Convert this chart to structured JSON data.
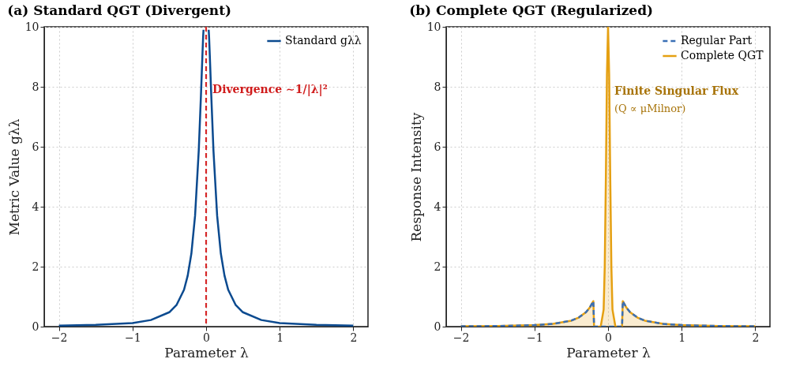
{
  "chart_data": [
    {
      "type": "line",
      "title": "(a) Standard QGT (Divergent)",
      "xlabel": "Parameter λ",
      "ylabel": "Metric Value gλλ",
      "x": [
        -2,
        -1.5,
        -1,
        -0.75,
        -0.5,
        -0.4,
        -0.3,
        -0.25,
        -0.2,
        -0.15,
        -0.1,
        -0.07,
        -0.05,
        -0.04,
        -0.035,
        0,
        0.035,
        0.04,
        0.05,
        0.07,
        0.1,
        0.15,
        0.2,
        0.25,
        0.3,
        0.4,
        0.5,
        0.75,
        1,
        1.5,
        2
      ],
      "series": [
        {
          "name": "Standard gλλ",
          "color": "#0b4a8f",
          "values": [
            0.03,
            0.06,
            0.12,
            0.22,
            0.48,
            0.73,
            1.23,
            1.7,
            2.44,
            3.7,
            5.87,
            7.72,
            9.06,
            9.69,
            9.9,
            null,
            9.9,
            9.69,
            9.06,
            7.72,
            5.87,
            3.7,
            2.44,
            1.7,
            1.23,
            0.73,
            0.48,
            0.22,
            0.12,
            0.06,
            0.03
          ]
        }
      ],
      "xlim": [
        -2.2,
        2.2
      ],
      "xticks": [
        -2,
        -1,
        0,
        1,
        2
      ],
      "ylim": [
        0,
        10
      ],
      "yticks": [
        0,
        2,
        4,
        6,
        8,
        10
      ],
      "ref_lines": [
        {
          "axis": "x",
          "value": 0,
          "color": "#d62728",
          "line_style": "dashed"
        }
      ],
      "annotations": [
        "Divergence ∼1/|λ|²"
      ],
      "grid": true,
      "legend": "top right",
      "line_style": "solid"
    },
    {
      "type": "line",
      "title": "(b) Complete QGT (Regularized)",
      "xlabel": "Parameter λ",
      "ylabel": "Response Intensity",
      "series": [
        {
          "name": "Regular Part",
          "color": "#3a6fb5",
          "line_style": "dashed",
          "x": [
            -2,
            -1.5,
            -1,
            -0.75,
            -0.5,
            -0.4,
            -0.3,
            -0.25,
            -0.2,
            -0.19,
            0,
            0.19,
            0.2,
            0.25,
            0.3,
            0.4,
            0.5,
            0.75,
            1,
            1.5,
            2
          ],
          "values": [
            0.01,
            0.02,
            0.05,
            0.09,
            0.2,
            0.3,
            0.48,
            0.63,
            0.85,
            0,
            0,
            0,
            0.85,
            0.63,
            0.48,
            0.3,
            0.2,
            0.09,
            0.05,
            0.02,
            0.01
          ]
        },
        {
          "name": "Complete QGT",
          "color": "#e5a012",
          "type": "area",
          "line_style": "solid",
          "x": [
            -2,
            -1.5,
            -1,
            -0.75,
            -0.5,
            -0.4,
            -0.3,
            -0.25,
            -0.2,
            -0.19,
            -0.1,
            -0.06,
            -0.045,
            -0.03,
            -0.015,
            0,
            0.015,
            0.03,
            0.045,
            0.06,
            0.1,
            0.19,
            0.2,
            0.25,
            0.3,
            0.4,
            0.5,
            0.75,
            1,
            1.5,
            2
          ],
          "values": [
            0.01,
            0.02,
            0.05,
            0.09,
            0.2,
            0.3,
            0.48,
            0.63,
            0.85,
            0,
            0,
            0.57,
            2,
            4.9,
            8.4,
            10,
            8.4,
            4.9,
            2,
            0.57,
            0,
            0,
            0.85,
            0.63,
            0.48,
            0.3,
            0.2,
            0.09,
            0.05,
            0.02,
            0.01
          ]
        }
      ],
      "xlim": [
        -2.2,
        2.2
      ],
      "xticks": [
        -2,
        -1,
        0,
        1,
        2
      ],
      "ylim": [
        0,
        10
      ],
      "yticks": [
        0,
        2,
        4,
        6,
        8,
        10
      ],
      "annotations": [
        "Finite Singular Flux",
        "(Q ∝ μMilnor)"
      ],
      "grid": true,
      "legend": "top right"
    }
  ]
}
